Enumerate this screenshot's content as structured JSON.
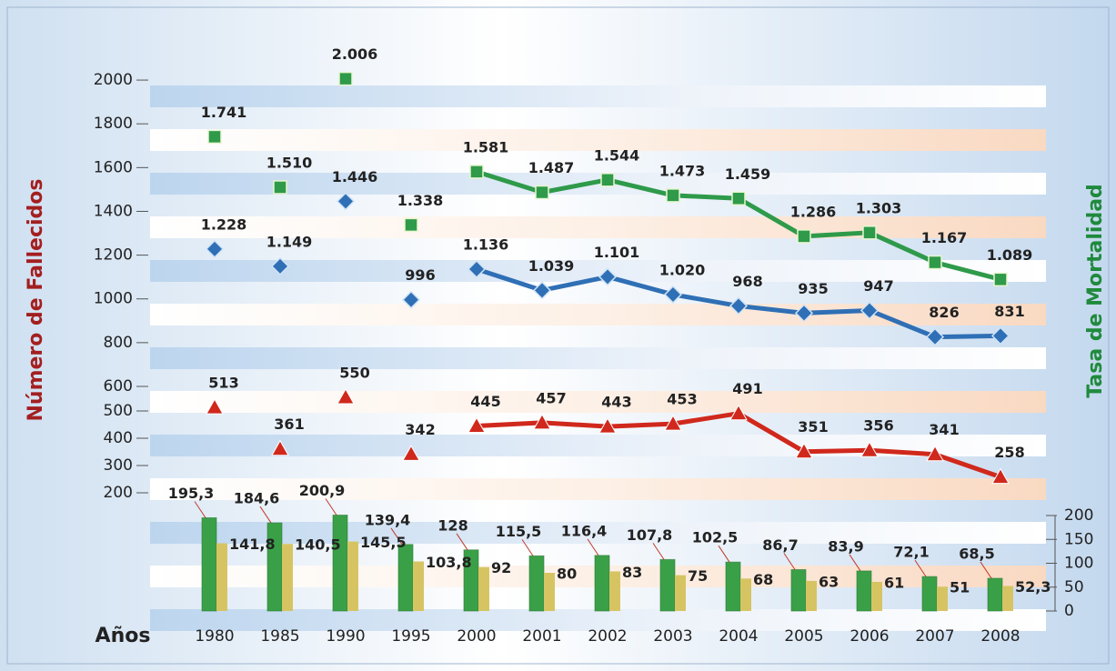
{
  "chart_data": [
    {
      "type": "line",
      "y_label": "Número de Fallecidos",
      "ylim": [
        600,
        2100
      ],
      "yticks": [
        600,
        800,
        1000,
        1200,
        1400,
        1600,
        1800,
        2000
      ],
      "series": [
        {
          "color": "#2e9a4a",
          "values": [
            1741,
            1510,
            2006,
            1338,
            1581,
            1487,
            1544,
            1473,
            1459,
            1286,
            1303,
            1167,
            1089
          ],
          "value_labels": [
            "1.741",
            "1.510",
            "2.006",
            "1.338",
            "1.581",
            "1.487",
            "1.544",
            "1.473",
            "1.459",
            "1.286",
            "1.303",
            "1.167",
            "1.089"
          ]
        },
        {
          "color": "#2f6fb5",
          "values": [
            1228,
            1149,
            1446,
            996,
            1136,
            1039,
            1101,
            1020,
            968,
            935,
            947,
            826,
            831
          ],
          "value_labels": [
            "1.228",
            "1.149",
            "1.446",
            "996",
            "1.136",
            "1.039",
            "1.101",
            "1.020",
            "968",
            "935",
            "947",
            "826",
            "831"
          ]
        }
      ]
    },
    {
      "type": "line",
      "ylim": [
        200,
        600
      ],
      "yticks": [
        200,
        300,
        400,
        500
      ],
      "series": [
        {
          "color": "#d0281c",
          "values": [
            513,
            361,
            550,
            342,
            445,
            457,
            443,
            453,
            491,
            351,
            356,
            341,
            258
          ]
        }
      ]
    },
    {
      "type": "bar",
      "y_label": "Tasa de Mortalidad",
      "x_label": "Años",
      "categories": [
        "1980",
        "1985",
        "1990",
        "1995",
        "2000",
        "2001",
        "2002",
        "2003",
        "2004",
        "2005",
        "2006",
        "2007",
        "2008"
      ],
      "ylim": [
        0,
        200
      ],
      "yticks": [
        0,
        50,
        100,
        150,
        200
      ],
      "series": [
        {
          "color": "#3aa048",
          "values": [
            195.3,
            184.6,
            200.9,
            139.4,
            128,
            115.5,
            116.4,
            107.8,
            102.5,
            86.7,
            83.9,
            72.1,
            68.5
          ],
          "value_labels": [
            "195,3",
            "184,6",
            "200,9",
            "139,4",
            "128",
            "115,5",
            "116,4",
            "107,8",
            "102,5",
            "86,7",
            "83,9",
            "72,1",
            "68,5"
          ]
        },
        {
          "color": "#d6c463",
          "values": [
            141.8,
            140.5,
            145.5,
            103.8,
            92,
            80,
            83,
            75,
            68,
            63,
            61,
            51,
            52.3
          ],
          "value_labels": [
            "141,8",
            "140,5",
            "145,5",
            "103,8",
            "92",
            "80",
            "83",
            "75",
            "68",
            "63",
            "61",
            "51",
            "52,3"
          ]
        }
      ]
    }
  ]
}
